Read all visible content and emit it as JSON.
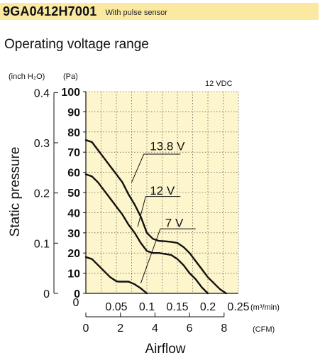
{
  "header": {
    "model": "9GA0412H7001",
    "note": "With pulse sensor",
    "subtitle": "Operating voltage range"
  },
  "colors": {
    "title_band": "#fbe9a2",
    "plot_area": "#fdf5cc",
    "curve": "#111111"
  },
  "chart_data": {
    "type": "line",
    "title": "Operating voltage range",
    "annotation": "12 VDC",
    "ylabel": "Static pressure",
    "xlabel": "Airflow",
    "y_left_unit": "(inch H₂O)",
    "y_right_unit": "(Pa)",
    "x_top_unit": "(m³/min)",
    "x_bottom_unit": "(CFM)",
    "pa_ticks": [
      "0",
      "10",
      "20",
      "30",
      "40",
      "50",
      "60",
      "70",
      "80",
      "90",
      "100"
    ],
    "inch_ticks": [
      "0",
      "0.1",
      "0.2",
      "0.3",
      "0.4"
    ],
    "m3_ticks": [
      "0.05",
      "0.1",
      "0.15",
      "0.2",
      "0.25"
    ],
    "cfm_ticks": [
      "0",
      "2",
      "4",
      "6",
      "8"
    ],
    "xlim": [
      0,
      0.25
    ],
    "ylim": [
      0,
      100
    ],
    "grid": true,
    "series": [
      {
        "name": "13.8 V",
        "x": [
          0,
          0.01,
          0.02,
          0.03,
          0.04,
          0.05,
          0.06,
          0.07,
          0.08,
          0.09,
          0.095,
          0.1,
          0.11,
          0.12,
          0.13,
          0.14,
          0.15,
          0.16,
          0.17,
          0.18,
          0.19,
          0.2,
          0.21,
          0.22,
          0.23
        ],
        "y": [
          76,
          75,
          71,
          67,
          63,
          59,
          55,
          49,
          44,
          38,
          34,
          30,
          27,
          26,
          25.8,
          25.5,
          25,
          23,
          20,
          16,
          12,
          8,
          5,
          2,
          0
        ]
      },
      {
        "name": "12 V",
        "x": [
          0,
          0.01,
          0.02,
          0.03,
          0.04,
          0.05,
          0.06,
          0.07,
          0.08,
          0.09,
          0.1,
          0.11,
          0.12,
          0.13,
          0.14,
          0.15,
          0.16,
          0.17,
          0.18,
          0.19,
          0.2
        ],
        "y": [
          59,
          58,
          55,
          51,
          47,
          43,
          39,
          34,
          30,
          25,
          21,
          20,
          20,
          19.5,
          19,
          17,
          14,
          10,
          7,
          3,
          0
        ]
      },
      {
        "name": "7 V",
        "x": [
          0,
          0.01,
          0.02,
          0.03,
          0.04,
          0.05,
          0.055,
          0.06,
          0.07,
          0.08,
          0.09,
          0.1
        ],
        "y": [
          18,
          17,
          14,
          11,
          8,
          6,
          5.8,
          5.8,
          5.8,
          4.5,
          2.5,
          0
        ]
      }
    ]
  }
}
